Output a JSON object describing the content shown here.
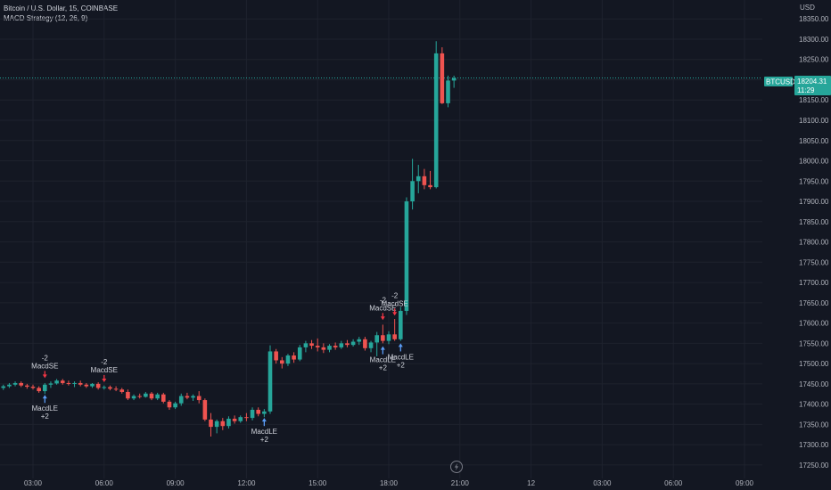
{
  "header": {
    "symbol_line": "Bitcoin / U.S. Dollar, 15, COINBASE",
    "indicator_line": "MACD Strategy (12, 26, 9)"
  },
  "colors": {
    "background": "#131722",
    "up": "#26a69a",
    "down": "#ef5350",
    "grid": "#1e222d",
    "axis_text": "#b2b5be",
    "price_badge": "#26a69a",
    "long_arrow": "#5b9cf6",
    "short_arrow": "#f23645"
  },
  "price_label": {
    "symbol": "BTCUSD",
    "price": "18204.31",
    "countdown": "11:29",
    "value": 18204.31
  },
  "replay_icon": "lightning-icon",
  "chart_data": {
    "type": "candlestick",
    "currency": "USD",
    "yrange": [
      17230,
      18390
    ],
    "y_ticks": [
      17250,
      17300,
      17350,
      17400,
      17450,
      17500,
      17550,
      17600,
      17650,
      17700,
      17750,
      17800,
      17850,
      17900,
      17950,
      18000,
      18050,
      18100,
      18150,
      18200,
      18250,
      18300,
      18350
    ],
    "y_tick_labels": [
      "17250.00",
      "17300.00",
      "17350.00",
      "17400.00",
      "17450.00",
      "17500.00",
      "17550.00",
      "17600.00",
      "17650.00",
      "17700.00",
      "17750.00",
      "17800.00",
      "17850.00",
      "17900.00",
      "17950.00",
      "18000.00",
      "18050.00",
      "18100.00",
      "18150.00",
      "18200.00",
      "18250.00",
      "18300.00",
      "18350.00"
    ],
    "x_ticks": [
      {
        "label": "03:00",
        "t": 3.0
      },
      {
        "label": "06:00",
        "t": 6.0
      },
      {
        "label": "09:00",
        "t": 9.0
      },
      {
        "label": "12:00",
        "t": 12.0
      },
      {
        "label": "15:00",
        "t": 15.0
      },
      {
        "label": "18:00",
        "t": 18.0
      },
      {
        "label": "21:00",
        "t": 21.0
      },
      {
        "label": "12",
        "t": 24.0
      },
      {
        "label": "03:00",
        "t": 27.0
      },
      {
        "label": "06:00",
        "t": 30.0
      },
      {
        "label": "09:00",
        "t": 33.0
      }
    ],
    "candles": [
      {
        "t": 1.75,
        "o": 17440,
        "h": 17448,
        "l": 17435,
        "c": 17444
      },
      {
        "t": 2.0,
        "o": 17444,
        "h": 17452,
        "l": 17440,
        "c": 17448
      },
      {
        "t": 2.25,
        "o": 17448,
        "h": 17456,
        "l": 17444,
        "c": 17452
      },
      {
        "t": 2.5,
        "o": 17452,
        "h": 17456,
        "l": 17442,
        "c": 17446
      },
      {
        "t": 2.75,
        "o": 17446,
        "h": 17450,
        "l": 17438,
        "c": 17443
      },
      {
        "t": 3.0,
        "o": 17443,
        "h": 17448,
        "l": 17436,
        "c": 17440
      },
      {
        "t": 3.25,
        "o": 17440,
        "h": 17444,
        "l": 17428,
        "c": 17432
      },
      {
        "t": 3.5,
        "o": 17432,
        "h": 17452,
        "l": 17425,
        "c": 17448
      },
      {
        "t": 3.75,
        "o": 17448,
        "h": 17456,
        "l": 17440,
        "c": 17451
      },
      {
        "t": 4.0,
        "o": 17451,
        "h": 17462,
        "l": 17448,
        "c": 17458
      },
      {
        "t": 4.25,
        "o": 17458,
        "h": 17462,
        "l": 17448,
        "c": 17452
      },
      {
        "t": 4.5,
        "o": 17452,
        "h": 17458,
        "l": 17446,
        "c": 17450
      },
      {
        "t": 4.75,
        "o": 17450,
        "h": 17456,
        "l": 17442,
        "c": 17452
      },
      {
        "t": 5.0,
        "o": 17452,
        "h": 17458,
        "l": 17444,
        "c": 17448
      },
      {
        "t": 5.25,
        "o": 17448,
        "h": 17452,
        "l": 17440,
        "c": 17444
      },
      {
        "t": 5.5,
        "o": 17444,
        "h": 17452,
        "l": 17440,
        "c": 17450
      },
      {
        "t": 5.75,
        "o": 17450,
        "h": 17454,
        "l": 17436,
        "c": 17440
      },
      {
        "t": 6.0,
        "o": 17440,
        "h": 17446,
        "l": 17436,
        "c": 17442
      },
      {
        "t": 6.25,
        "o": 17442,
        "h": 17446,
        "l": 17434,
        "c": 17438
      },
      {
        "t": 6.5,
        "o": 17438,
        "h": 17444,
        "l": 17432,
        "c": 17436
      },
      {
        "t": 6.75,
        "o": 17436,
        "h": 17440,
        "l": 17426,
        "c": 17430
      },
      {
        "t": 7.0,
        "o": 17430,
        "h": 17436,
        "l": 17410,
        "c": 17414
      },
      {
        "t": 7.25,
        "o": 17414,
        "h": 17424,
        "l": 17410,
        "c": 17420
      },
      {
        "t": 7.5,
        "o": 17420,
        "h": 17426,
        "l": 17414,
        "c": 17418
      },
      {
        "t": 7.75,
        "o": 17418,
        "h": 17430,
        "l": 17416,
        "c": 17426
      },
      {
        "t": 8.0,
        "o": 17426,
        "h": 17430,
        "l": 17410,
        "c": 17414
      },
      {
        "t": 8.25,
        "o": 17414,
        "h": 17428,
        "l": 17410,
        "c": 17424
      },
      {
        "t": 8.5,
        "o": 17424,
        "h": 17428,
        "l": 17402,
        "c": 17406
      },
      {
        "t": 8.75,
        "o": 17406,
        "h": 17410,
        "l": 17386,
        "c": 17392
      },
      {
        "t": 9.0,
        "o": 17392,
        "h": 17406,
        "l": 17388,
        "c": 17402
      },
      {
        "t": 9.25,
        "o": 17402,
        "h": 17426,
        "l": 17396,
        "c": 17420
      },
      {
        "t": 9.5,
        "o": 17420,
        "h": 17428,
        "l": 17412,
        "c": 17416
      },
      {
        "t": 9.75,
        "o": 17416,
        "h": 17424,
        "l": 17408,
        "c": 17420
      },
      {
        "t": 10.0,
        "o": 17420,
        "h": 17432,
        "l": 17402,
        "c": 17410
      },
      {
        "t": 10.25,
        "o": 17410,
        "h": 17414,
        "l": 17358,
        "c": 17362
      },
      {
        "t": 10.5,
        "o": 17362,
        "h": 17378,
        "l": 17320,
        "c": 17344
      },
      {
        "t": 10.75,
        "o": 17344,
        "h": 17362,
        "l": 17328,
        "c": 17358
      },
      {
        "t": 11.0,
        "o": 17358,
        "h": 17366,
        "l": 17336,
        "c": 17346
      },
      {
        "t": 11.25,
        "o": 17346,
        "h": 17370,
        "l": 17340,
        "c": 17364
      },
      {
        "t": 11.5,
        "o": 17364,
        "h": 17372,
        "l": 17352,
        "c": 17358
      },
      {
        "t": 11.75,
        "o": 17358,
        "h": 17372,
        "l": 17354,
        "c": 17368
      },
      {
        "t": 12.0,
        "o": 17368,
        "h": 17378,
        "l": 17358,
        "c": 17366
      },
      {
        "t": 12.25,
        "o": 17366,
        "h": 17392,
        "l": 17360,
        "c": 17386
      },
      {
        "t": 12.5,
        "o": 17386,
        "h": 17392,
        "l": 17370,
        "c": 17376
      },
      {
        "t": 12.75,
        "o": 17376,
        "h": 17388,
        "l": 17368,
        "c": 17382
      },
      {
        "t": 13.0,
        "o": 17382,
        "h": 17545,
        "l": 17376,
        "c": 17530
      },
      {
        "t": 13.25,
        "o": 17530,
        "h": 17536,
        "l": 17500,
        "c": 17508
      },
      {
        "t": 13.5,
        "o": 17508,
        "h": 17516,
        "l": 17488,
        "c": 17500
      },
      {
        "t": 13.75,
        "o": 17500,
        "h": 17524,
        "l": 17494,
        "c": 17520
      },
      {
        "t": 14.0,
        "o": 17520,
        "h": 17528,
        "l": 17502,
        "c": 17510
      },
      {
        "t": 14.25,
        "o": 17510,
        "h": 17546,
        "l": 17506,
        "c": 17540
      },
      {
        "t": 14.5,
        "o": 17540,
        "h": 17556,
        "l": 17528,
        "c": 17550
      },
      {
        "t": 14.75,
        "o": 17550,
        "h": 17558,
        "l": 17536,
        "c": 17544
      },
      {
        "t": 15.0,
        "o": 17544,
        "h": 17562,
        "l": 17530,
        "c": 17540
      },
      {
        "t": 15.25,
        "o": 17540,
        "h": 17550,
        "l": 17526,
        "c": 17534
      },
      {
        "t": 15.5,
        "o": 17534,
        "h": 17548,
        "l": 17528,
        "c": 17544
      },
      {
        "t": 15.75,
        "o": 17544,
        "h": 17552,
        "l": 17534,
        "c": 17540
      },
      {
        "t": 16.0,
        "o": 17540,
        "h": 17556,
        "l": 17536,
        "c": 17550
      },
      {
        "t": 16.25,
        "o": 17550,
        "h": 17558,
        "l": 17540,
        "c": 17546
      },
      {
        "t": 16.5,
        "o": 17546,
        "h": 17560,
        "l": 17542,
        "c": 17554
      },
      {
        "t": 16.75,
        "o": 17554,
        "h": 17566,
        "l": 17546,
        "c": 17560
      },
      {
        "t": 17.0,
        "o": 17560,
        "h": 17566,
        "l": 17532,
        "c": 17538
      },
      {
        "t": 17.25,
        "o": 17538,
        "h": 17556,
        "l": 17528,
        "c": 17552
      },
      {
        "t": 17.5,
        "o": 17552,
        "h": 17578,
        "l": 17518,
        "c": 17570
      },
      {
        "t": 17.75,
        "o": 17570,
        "h": 17596,
        "l": 17550,
        "c": 17556
      },
      {
        "t": 18.0,
        "o": 17556,
        "h": 17580,
        "l": 17548,
        "c": 17572
      },
      {
        "t": 18.25,
        "o": 17572,
        "h": 17610,
        "l": 17556,
        "c": 17560
      },
      {
        "t": 18.5,
        "o": 17560,
        "h": 17640,
        "l": 17556,
        "c": 17630
      },
      {
        "t": 18.75,
        "o": 17630,
        "h": 17910,
        "l": 17620,
        "c": 17900
      },
      {
        "t": 19.0,
        "o": 17900,
        "h": 18005,
        "l": 17880,
        "c": 17950
      },
      {
        "t": 19.25,
        "o": 17950,
        "h": 17990,
        "l": 17920,
        "c": 17962
      },
      {
        "t": 19.5,
        "o": 17962,
        "h": 17980,
        "l": 17930,
        "c": 17940
      },
      {
        "t": 19.75,
        "o": 17940,
        "h": 17975,
        "l": 17930,
        "c": 17935
      },
      {
        "t": 20.0,
        "o": 17935,
        "h": 18295,
        "l": 17932,
        "c": 18265
      },
      {
        "t": 20.25,
        "o": 18265,
        "h": 18280,
        "l": 18140,
        "c": 18142
      },
      {
        "t": 20.5,
        "o": 18142,
        "h": 18210,
        "l": 18132,
        "c": 18198
      },
      {
        "t": 20.75,
        "o": 18198,
        "h": 18210,
        "l": 18180,
        "c": 18204
      }
    ],
    "signals": [
      {
        "type": "short",
        "t": 3.5,
        "price": 17462,
        "qty": "-2",
        "label": "MacdSE"
      },
      {
        "type": "long",
        "t": 3.5,
        "price": 17425,
        "qty": "+2",
        "label": "MacdLE"
      },
      {
        "type": "short",
        "t": 6.0,
        "price": 17452,
        "qty": "-2",
        "label": "MacdSE"
      },
      {
        "type": "long",
        "t": 12.75,
        "price": 17368,
        "qty": "+2",
        "label": "MacdLE"
      },
      {
        "type": "short",
        "t": 17.75,
        "price": 17605,
        "qty": "-2",
        "label": "MacdSE"
      },
      {
        "type": "long",
        "t": 17.75,
        "price": 17545,
        "qty": "+2",
        "label": "MacdLE"
      },
      {
        "type": "short",
        "t": 18.25,
        "price": 17616,
        "qty": "-2",
        "label": "MacdSE"
      },
      {
        "type": "long",
        "t": 18.5,
        "price": 17552,
        "qty": "+2",
        "label": "MacdLE"
      }
    ]
  }
}
